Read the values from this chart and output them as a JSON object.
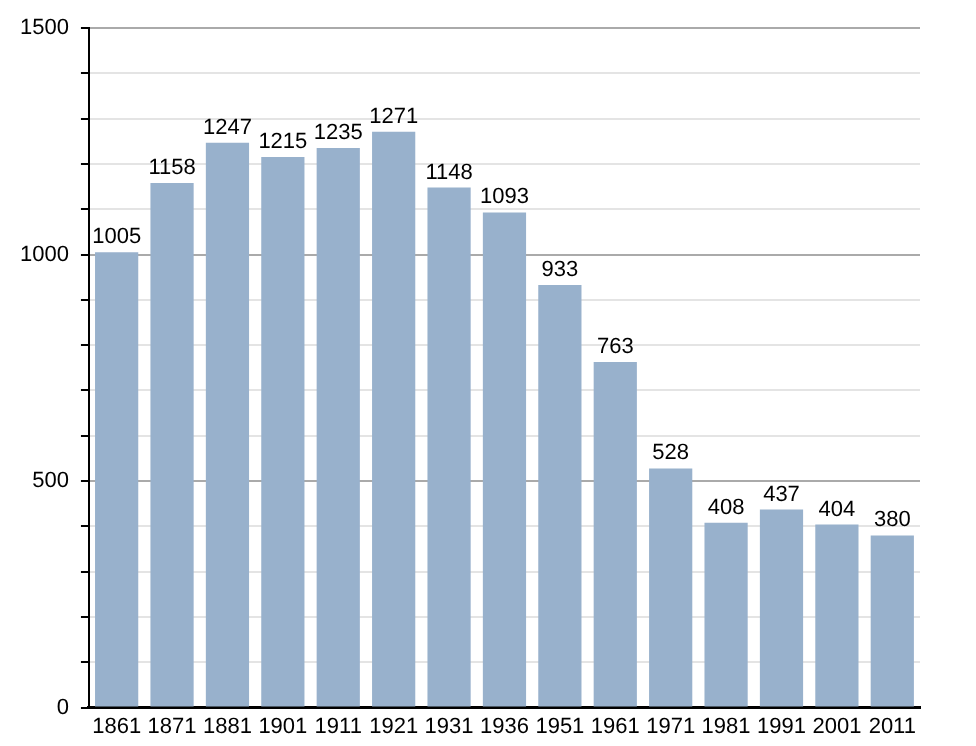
{
  "chart_data": {
    "type": "bar",
    "categories": [
      "1861",
      "1871",
      "1881",
      "1901",
      "1911",
      "1921",
      "1931",
      "1936",
      "1951",
      "1961",
      "1971",
      "1981",
      "1991",
      "2001",
      "2011"
    ],
    "values": [
      1005,
      1158,
      1247,
      1215,
      1235,
      1271,
      1148,
      1093,
      933,
      763,
      528,
      408,
      437,
      404,
      380
    ],
    "color": "#98b1cc",
    "ylim": [
      0,
      1500
    ],
    "yticks": [
      0,
      {
        "value": 100,
        "label": null
      },
      {
        "value": 200,
        "label": null
      },
      {
        "value": 300,
        "label": null
      },
      {
        "value": 400,
        "label": null
      },
      500,
      {
        "value": 600,
        "label": null
      },
      {
        "value": 700,
        "label": null
      },
      {
        "value": 800,
        "label": null
      },
      {
        "value": 900,
        "label": null
      },
      1000,
      {
        "value": 1100,
        "label": null
      },
      {
        "value": 1200,
        "label": null
      },
      {
        "value": 1300,
        "label": null
      },
      {
        "value": 1400,
        "label": null
      },
      1500
    ],
    "grid": "y",
    "data_labels": true
  }
}
